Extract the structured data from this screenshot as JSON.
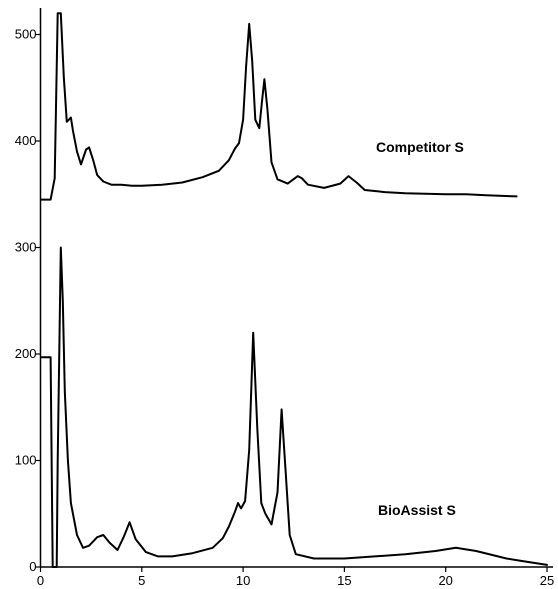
{
  "chart_data": {
    "type": "line",
    "title": "",
    "xlabel": "",
    "ylabel": "",
    "xlim": [
      0,
      25
    ],
    "ylim": [
      0,
      520
    ],
    "x_ticks": [
      0,
      5,
      10,
      15,
      20,
      25
    ],
    "y_ticks": [
      0,
      100,
      200,
      300,
      400,
      500
    ],
    "grid": false,
    "series": [
      {
        "name": "Competitor S",
        "points": [
          [
            0,
            345
          ],
          [
            0.5,
            345
          ],
          [
            0.7,
            365
          ],
          [
            0.85,
            520
          ],
          [
            1.0,
            520
          ],
          [
            1.15,
            460
          ],
          [
            1.3,
            418
          ],
          [
            1.5,
            422
          ],
          [
            1.6,
            410
          ],
          [
            1.8,
            390
          ],
          [
            2.0,
            378
          ],
          [
            2.25,
            392
          ],
          [
            2.4,
            394
          ],
          [
            2.6,
            382
          ],
          [
            2.8,
            368
          ],
          [
            3.1,
            362
          ],
          [
            3.5,
            359
          ],
          [
            4.0,
            359
          ],
          [
            4.5,
            358
          ],
          [
            5.0,
            358
          ],
          [
            6.0,
            359
          ],
          [
            7.0,
            361
          ],
          [
            8.0,
            366
          ],
          [
            8.8,
            372
          ],
          [
            9.3,
            382
          ],
          [
            9.6,
            393
          ],
          [
            9.8,
            398
          ],
          [
            10.0,
            420
          ],
          [
            10.15,
            470
          ],
          [
            10.3,
            510
          ],
          [
            10.45,
            475
          ],
          [
            10.6,
            420
          ],
          [
            10.8,
            412
          ],
          [
            10.95,
            440
          ],
          [
            11.05,
            458
          ],
          [
            11.2,
            430
          ],
          [
            11.4,
            380
          ],
          [
            11.7,
            364
          ],
          [
            12.2,
            360
          ],
          [
            12.7,
            367
          ],
          [
            12.9,
            365
          ],
          [
            13.2,
            359
          ],
          [
            14.0,
            356
          ],
          [
            14.8,
            360
          ],
          [
            15.2,
            367
          ],
          [
            15.6,
            361
          ],
          [
            16.0,
            354
          ],
          [
            17.0,
            352
          ],
          [
            18.0,
            351
          ],
          [
            20.0,
            350
          ],
          [
            21.0,
            350
          ],
          [
            22.0,
            349
          ],
          [
            23.5,
            348
          ]
        ]
      },
      {
        "name": "BioAssist S",
        "points": [
          [
            0,
            197
          ],
          [
            0.5,
            197
          ],
          [
            0.6,
            0
          ],
          [
            0.8,
            0
          ],
          [
            0.85,
            100
          ],
          [
            1.0,
            300
          ],
          [
            1.1,
            250
          ],
          [
            1.2,
            165
          ],
          [
            1.35,
            100
          ],
          [
            1.5,
            60
          ],
          [
            1.8,
            30
          ],
          [
            2.1,
            18
          ],
          [
            2.4,
            20
          ],
          [
            2.8,
            28
          ],
          [
            3.1,
            30
          ],
          [
            3.4,
            23
          ],
          [
            3.8,
            16
          ],
          [
            4.1,
            28
          ],
          [
            4.4,
            42
          ],
          [
            4.7,
            26
          ],
          [
            5.2,
            14
          ],
          [
            5.8,
            10
          ],
          [
            6.5,
            10
          ],
          [
            7.5,
            13
          ],
          [
            8.5,
            18
          ],
          [
            9.0,
            27
          ],
          [
            9.3,
            38
          ],
          [
            9.6,
            52
          ],
          [
            9.75,
            60
          ],
          [
            9.9,
            55
          ],
          [
            10.1,
            62
          ],
          [
            10.3,
            110
          ],
          [
            10.5,
            220
          ],
          [
            10.7,
            130
          ],
          [
            10.9,
            60
          ],
          [
            11.1,
            50
          ],
          [
            11.4,
            40
          ],
          [
            11.7,
            70
          ],
          [
            11.9,
            148
          ],
          [
            12.1,
            90
          ],
          [
            12.3,
            30
          ],
          [
            12.6,
            12
          ],
          [
            13.5,
            8
          ],
          [
            15.0,
            8
          ],
          [
            16.5,
            10
          ],
          [
            18.0,
            12
          ],
          [
            19.5,
            15
          ],
          [
            20.5,
            18
          ],
          [
            21.5,
            15
          ],
          [
            23.0,
            8
          ],
          [
            24.0,
            5
          ],
          [
            25,
            2
          ]
        ]
      }
    ]
  }
}
